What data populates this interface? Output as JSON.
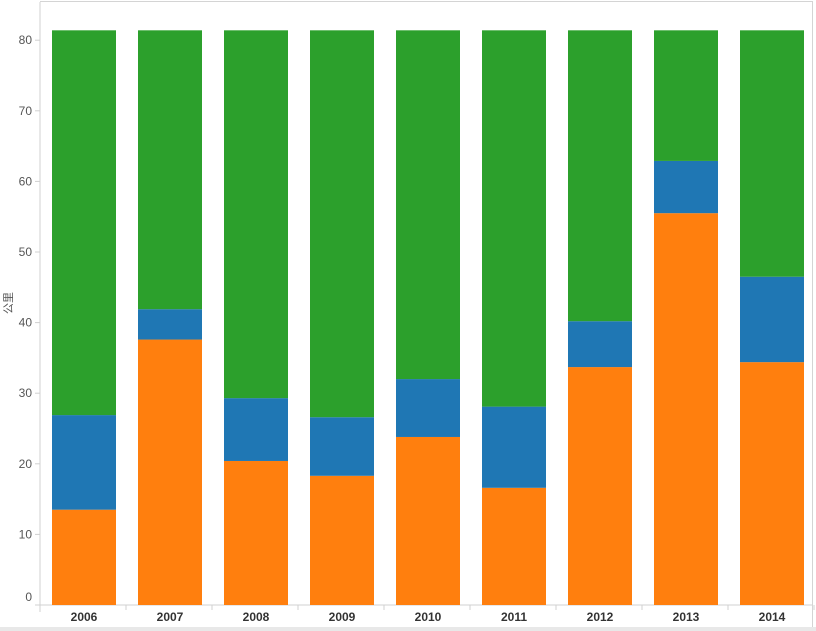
{
  "chart_data": {
    "type": "bar",
    "stacked": true,
    "title": "",
    "xlabel": "",
    "ylabel": "公里",
    "ylim": [
      0,
      85
    ],
    "yticks": [
      0,
      10,
      20,
      30,
      40,
      50,
      60,
      70,
      80
    ],
    "categories": [
      "2006",
      "2007",
      "2008",
      "2009",
      "2010",
      "2011",
      "2012",
      "2013",
      "2014"
    ],
    "series": [
      {
        "name": "orange",
        "color": "#ff7f0e",
        "values": [
          13.5,
          37.6,
          20.4,
          18.3,
          23.8,
          16.6,
          33.7,
          55.5,
          34.4
        ]
      },
      {
        "name": "blue",
        "color": "#1f77b4",
        "values": [
          13.4,
          4.3,
          8.9,
          8.3,
          8.2,
          11.5,
          6.5,
          7.4,
          12.1
        ]
      },
      {
        "name": "green",
        "color": "#2ca02c",
        "values": [
          54.5,
          39.5,
          52.1,
          54.8,
          49.4,
          53.3,
          41.2,
          18.5,
          34.9
        ]
      }
    ],
    "grid": false,
    "legend": "none"
  }
}
